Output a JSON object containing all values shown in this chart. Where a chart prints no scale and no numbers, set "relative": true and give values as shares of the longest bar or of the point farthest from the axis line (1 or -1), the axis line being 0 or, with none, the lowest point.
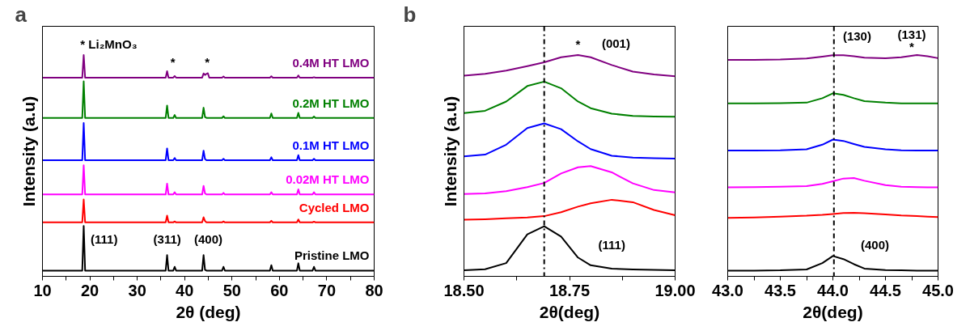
{
  "chart_data": [
    {
      "type": "line",
      "relative": true,
      "xlabel": "2θ (deg)",
      "ylabel": "Intensity (a.u)",
      "grid": false,
      "tick_labels": "x",
      "marker": "none",
      "line_style": "solid",
      "xlim": [
        10,
        80
      ],
      "xticks": [
        10,
        {
          "value": 15,
          "label": null
        },
        20,
        {
          "value": 25,
          "label": null
        },
        30,
        {
          "value": 35,
          "label": null
        },
        40,
        {
          "value": 45,
          "label": null
        },
        50,
        {
          "value": 55,
          "label": null
        },
        60,
        {
          "value": 65,
          "label": null
        },
        70,
        {
          "value": 75,
          "label": null
        },
        80
      ],
      "x": [
        10,
        18.4,
        18.7,
        19.0,
        36.0,
        36.3,
        36.6,
        37.6,
        37.9,
        38.2,
        43.7,
        44.0,
        44.3,
        44.6,
        44.9,
        45.2,
        47.9,
        48.2,
        48.5,
        58.0,
        58.3,
        58.6,
        63.7,
        64.0,
        64.3,
        67.0,
        67.3,
        67.6,
        80
      ],
      "series": [
        {
          "name": "0.4M HT LMO",
          "color": "#800080",
          "values": [
            0.898,
            0.898,
            1.0,
            0.898,
            0.898,
            0.927,
            0.898,
            0.898,
            0.905,
            0.898,
            0.898,
            0.917,
            0.91,
            0.915,
            0.918,
            0.898,
            0.898,
            0.903,
            0.898,
            0.898,
            0.904,
            0.898,
            0.898,
            0.908,
            0.898,
            0.898,
            0.9,
            0.898,
            0.898
          ]
        },
        {
          "name": "0.2M HT LMO",
          "color": "#008000",
          "values": [
            0.716,
            0.716,
            0.881,
            0.716,
            0.716,
            0.772,
            0.716,
            0.716,
            0.729,
            0.716,
            0.716,
            0.762,
            0.72,
            0.716,
            0.716,
            0.716,
            0.716,
            0.723,
            0.716,
            0.716,
            0.736,
            0.716,
            0.716,
            0.739,
            0.716,
            0.716,
            0.722,
            0.716,
            0.716
          ]
        },
        {
          "name": "0.1M HT LMO",
          "color": "#0000ff",
          "values": [
            0.525,
            0.525,
            0.693,
            0.525,
            0.525,
            0.578,
            0.525,
            0.525,
            0.535,
            0.525,
            0.525,
            0.568,
            0.53,
            0.525,
            0.525,
            0.525,
            0.525,
            0.531,
            0.525,
            0.525,
            0.538,
            0.525,
            0.525,
            0.548,
            0.525,
            0.525,
            0.531,
            0.525,
            0.525
          ]
        },
        {
          "name": "0.02M HT LMO",
          "color": "#ff00ff",
          "values": [
            0.37,
            0.37,
            0.502,
            0.37,
            0.37,
            0.419,
            0.37,
            0.37,
            0.38,
            0.37,
            0.37,
            0.409,
            0.375,
            0.37,
            0.37,
            0.37,
            0.37,
            0.377,
            0.37,
            0.37,
            0.38,
            0.37,
            0.37,
            0.393,
            0.37,
            0.37,
            0.38,
            0.37,
            0.37
          ]
        },
        {
          "name": "Cycled LMO",
          "color": "#ff0000",
          "values": [
            0.244,
            0.244,
            0.347,
            0.244,
            0.244,
            0.274,
            0.244,
            0.244,
            0.248,
            0.244,
            0.244,
            0.267,
            0.25,
            0.244,
            0.244,
            0.244,
            0.244,
            0.248,
            0.244,
            0.244,
            0.251,
            0.244,
            0.244,
            0.257,
            0.244,
            0.244,
            0.247,
            0.244,
            0.244
          ]
        },
        {
          "name": "Pristine LMO",
          "color": "#000000",
          "values": [
            0.026,
            0.026,
            0.228,
            0.026,
            0.026,
            0.096,
            0.026,
            0.026,
            0.043,
            0.026,
            0.026,
            0.096,
            0.03,
            0.026,
            0.026,
            0.026,
            0.026,
            0.043,
            0.026,
            0.026,
            0.05,
            0.026,
            0.026,
            0.059,
            0.026,
            0.026,
            0.043,
            0.026,
            0.026
          ]
        }
      ],
      "annotations": [
        "a",
        "* Li₂MnO₃",
        "*",
        "*",
        "(111)",
        "(311)",
        "(400)"
      ]
    },
    {
      "type": "line",
      "relative": true,
      "xlabel": "2θ(deg)",
      "ylabel": "Intensity (a.u)",
      "grid": false,
      "tick_labels": "x",
      "marker": "none",
      "line_style": "solid",
      "xlim": [
        18.5,
        19.0
      ],
      "xticks": [
        {
          "value": 18.5,
          "label": "18.50"
        },
        {
          "value": 18.625,
          "label": null
        },
        18.75,
        {
          "value": 18.875,
          "label": null
        },
        {
          "value": 19.0,
          "label": "19.00"
        }
      ],
      "x": [
        18.5,
        18.55,
        18.6,
        18.65,
        18.69,
        18.73,
        18.77,
        18.8,
        18.85,
        18.9,
        18.95,
        19.0
      ],
      "series": [
        {
          "color": "#800080",
          "values": [
            0.907,
            0.915,
            0.93,
            0.95,
            0.967,
            0.99,
            1.0,
            0.99,
            0.955,
            0.925,
            0.912,
            0.904
          ]
        },
        {
          "color": "#008000",
          "values": [
            0.738,
            0.748,
            0.79,
            0.86,
            0.88,
            0.85,
            0.79,
            0.76,
            0.735,
            0.725,
            0.722,
            0.721
          ]
        },
        {
          "color": "#0000ff",
          "values": [
            0.542,
            0.55,
            0.595,
            0.67,
            0.691,
            0.665,
            0.61,
            0.575,
            0.545,
            0.537,
            0.534,
            0.532
          ]
        },
        {
          "color": "#ff00ff",
          "values": [
            0.372,
            0.375,
            0.385,
            0.403,
            0.422,
            0.465,
            0.493,
            0.498,
            0.47,
            0.42,
            0.39,
            0.379
          ]
        },
        {
          "color": "#ff0000",
          "values": [
            0.256,
            0.258,
            0.262,
            0.266,
            0.272,
            0.29,
            0.315,
            0.33,
            0.346,
            0.335,
            0.3,
            0.276
          ]
        },
        {
          "color": "#000000",
          "values": [
            0.027,
            0.032,
            0.06,
            0.19,
            0.226,
            0.18,
            0.085,
            0.05,
            0.035,
            0.031,
            0.029,
            0.027
          ]
        }
      ],
      "ref_lines": [
        {
          "axis": "x",
          "value": 18.69,
          "color": "#000000",
          "line_style": "dashdot"
        }
      ],
      "annotations": [
        "b",
        "*",
        "(001)",
        "(111)"
      ]
    },
    {
      "type": "line",
      "relative": true,
      "xlabel": "2θ(deg)",
      "grid": false,
      "tick_labels": "x",
      "marker": "none",
      "line_style": "solid",
      "xlim": [
        43.0,
        45.0
      ],
      "xticks": [
        {
          "value": 43.0,
          "label": "43.0"
        },
        {
          "value": 43.25,
          "label": null
        },
        43.5,
        {
          "value": 43.75,
          "label": null
        },
        {
          "value": 44.0,
          "label": "44.0"
        },
        {
          "value": 44.25,
          "label": null
        },
        44.5,
        {
          "value": 44.75,
          "label": null
        },
        {
          "value": 45.0,
          "label": "45.0"
        }
      ],
      "x": [
        43.0,
        43.25,
        43.5,
        43.75,
        43.9,
        44.0,
        44.1,
        44.2,
        44.3,
        44.5,
        44.65,
        44.8,
        44.9,
        45.0
      ],
      "series": [
        {
          "color": "#800080",
          "values": [
            0.978,
            0.978,
            0.98,
            0.985,
            0.993,
            0.999,
            0.999,
            0.995,
            0.988,
            0.986,
            0.99,
            1.0,
            0.995,
            0.986
          ]
        },
        {
          "color": "#008000",
          "values": [
            0.782,
            0.782,
            0.783,
            0.785,
            0.805,
            0.827,
            0.82,
            0.805,
            0.792,
            0.785,
            0.782,
            0.782,
            0.782,
            0.782
          ]
        },
        {
          "color": "#0000ff",
          "values": [
            0.569,
            0.569,
            0.57,
            0.574,
            0.595,
            0.618,
            0.612,
            0.598,
            0.585,
            0.574,
            0.57,
            0.569,
            0.569,
            0.569
          ]
        },
        {
          "color": "#ff00ff",
          "values": [
            0.402,
            0.403,
            0.405,
            0.408,
            0.418,
            0.43,
            0.442,
            0.444,
            0.432,
            0.412,
            0.405,
            0.403,
            0.402,
            0.402
          ]
        },
        {
          "color": "#ff0000",
          "values": [
            0.264,
            0.266,
            0.27,
            0.274,
            0.278,
            0.282,
            0.286,
            0.287,
            0.285,
            0.28,
            0.275,
            0.272,
            0.27,
            0.268
          ]
        },
        {
          "color": "#000000",
          "values": [
            0.026,
            0.026,
            0.027,
            0.031,
            0.06,
            0.092,
            0.078,
            0.055,
            0.035,
            0.028,
            0.027,
            0.026,
            0.026,
            0.026
          ]
        }
      ],
      "ref_lines": [
        {
          "axis": "x",
          "value": 44.01,
          "color": "#000000",
          "line_style": "dashdot"
        }
      ],
      "annotations": [
        "(130)",
        "*",
        "(131)",
        "(400)"
      ]
    }
  ]
}
